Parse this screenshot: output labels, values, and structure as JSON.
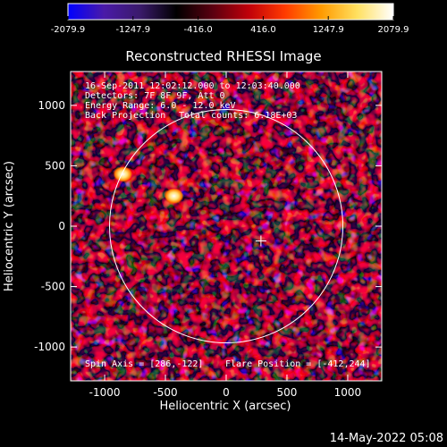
{
  "colorbar": {
    "stops": [
      "#0000ff",
      "#4a1aa8",
      "#3a1a6a",
      "#000000",
      "#5a0010",
      "#c0000a",
      "#ff3a00",
      "#ff9a00",
      "#ffe060",
      "#ffffff"
    ],
    "tick_labels": [
      "-2079.9",
      "-1247.9",
      "-416.0",
      "416.0",
      "1247.9",
      "2079.9"
    ],
    "ticks": [
      -2079.9,
      -1247.9,
      -416.0,
      416.0,
      1247.9,
      2079.9
    ],
    "range": [
      -2079.9,
      2079.9
    ]
  },
  "title": "Reconstructed RHESSI Image",
  "info": {
    "line1": "16-Sep-2011 12:02:12.000 to 12:03:40.000",
    "line2": "Detectors: 7F 8F 9F, Att 0",
    "line3": "Energy Range: 6.0 - 12.0 keV",
    "line4a": "Back Projection",
    "line4b": "Total counts: 6.18E+03"
  },
  "footer_left": "Spin Axis = [286,-122]",
  "footer_right": "Flare Position = [-412,244]",
  "axes": {
    "xlabel": "Heliocentric X (arcsec)",
    "ylabel": "Heliocentric Y (arcsec)",
    "xlim": [
      -1280,
      1280
    ],
    "ylim": [
      -1280,
      1280
    ],
    "xticks": [
      -1000,
      -500,
      0,
      500,
      1000
    ],
    "yticks": [
      -1000,
      -500,
      0,
      500,
      1000
    ],
    "xtick_labels": [
      "-1000",
      "-500",
      "0",
      "500",
      "1000"
    ],
    "ytick_labels": [
      "-1000",
      "-500",
      "0",
      "500",
      "1000"
    ]
  },
  "disk": {
    "center": [
      0,
      0
    ],
    "radius_arcsec": 960
  },
  "spin_axis_marker": [
    286,
    -122
  ],
  "hot_spots": [
    {
      "x": -850,
      "y": 430,
      "level": 1.0
    },
    {
      "x": -430,
      "y": 250,
      "level": 1.0
    }
  ],
  "timestamp": "14-May-2022 05:08"
}
